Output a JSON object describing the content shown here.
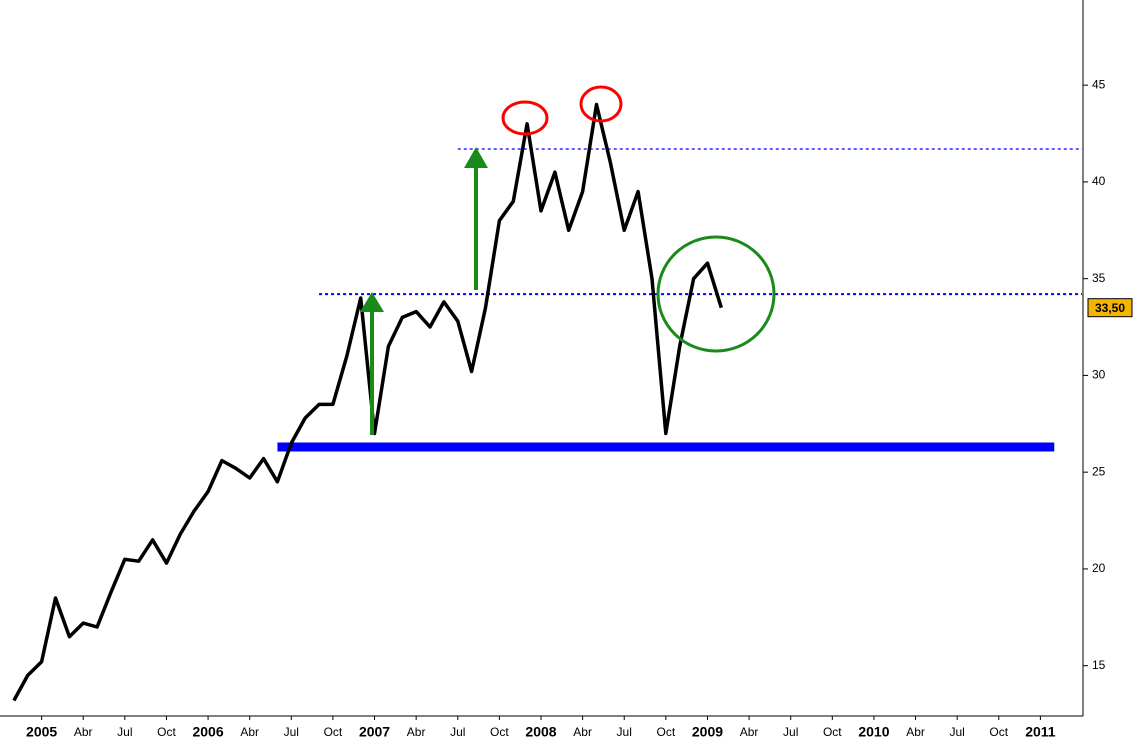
{
  "chart_data": {
    "type": "line",
    "x": [
      "2004-11",
      "2004-12",
      "2005-01",
      "2005-02",
      "2005-03",
      "2005-04",
      "2005-05",
      "2005-06",
      "2005-07",
      "2005-08",
      "2005-09",
      "2005-10",
      "2005-11",
      "2005-12",
      "2006-01",
      "2006-02",
      "2006-03",
      "2006-04",
      "2006-05",
      "2006-06",
      "2006-07",
      "2006-08",
      "2006-09",
      "2006-10",
      "2006-11",
      "2006-12",
      "2007-01",
      "2007-02",
      "2007-03",
      "2007-04",
      "2007-05",
      "2007-06",
      "2007-07",
      "2007-08",
      "2007-09",
      "2007-10",
      "2007-11",
      "2007-12",
      "2008-01",
      "2008-02",
      "2008-03",
      "2008-04",
      "2008-05",
      "2008-06",
      "2008-07",
      "2008-08",
      "2008-09",
      "2008-10",
      "2008-11",
      "2008-12",
      "2009-01",
      "2009-02"
    ],
    "values": [
      13.2,
      14.5,
      15.2,
      18.5,
      16.5,
      17.2,
      17.0,
      18.8,
      20.5,
      20.4,
      21.5,
      20.3,
      21.8,
      23.0,
      24.0,
      25.6,
      25.2,
      24.7,
      25.7,
      24.5,
      26.5,
      27.8,
      28.5,
      28.5,
      31.0,
      34.0,
      27.0,
      31.5,
      33.0,
      33.3,
      32.5,
      33.8,
      32.8,
      30.2,
      33.5,
      38.0,
      39.0,
      43.0,
      38.5,
      40.5,
      37.5,
      39.5,
      44.0,
      41.0,
      37.5,
      39.5,
      35.0,
      27.0,
      31.5,
      35.0,
      35.8,
      33.5
    ],
    "color": "#000000",
    "xlim": [
      "2004-10",
      "2011-04"
    ],
    "xticks": [
      {
        "value": "2005-01",
        "label": "2005"
      },
      {
        "value": "2005-04",
        "label": "Abr"
      },
      {
        "value": "2005-07",
        "label": "Jul"
      },
      {
        "value": "2005-10",
        "label": "Oct"
      },
      {
        "value": "2006-01",
        "label": "2006"
      },
      {
        "value": "2006-04",
        "label": "Abr"
      },
      {
        "value": "2006-07",
        "label": "Jul"
      },
      {
        "value": "2006-10",
        "label": "Oct"
      },
      {
        "value": "2007-01",
        "label": "2007"
      },
      {
        "value": "2007-04",
        "label": "Abr"
      },
      {
        "value": "2007-07",
        "label": "Jul"
      },
      {
        "value": "2007-10",
        "label": "Oct"
      },
      {
        "value": "2008-01",
        "label": "2008"
      },
      {
        "value": "2008-04",
        "label": "Abr"
      },
      {
        "value": "2008-07",
        "label": "Jul"
      },
      {
        "value": "2008-10",
        "label": "Oct"
      },
      {
        "value": "2009-01",
        "label": "2009"
      },
      {
        "value": "2009-04",
        "label": "Abr"
      },
      {
        "value": "2009-07",
        "label": "Jul"
      },
      {
        "value": "2009-10",
        "label": "Oct"
      },
      {
        "value": "2010-01",
        "label": "2010"
      },
      {
        "value": "2010-04",
        "label": "Abr"
      },
      {
        "value": "2010-07",
        "label": "Jul"
      },
      {
        "value": "2010-10",
        "label": "Oct"
      },
      {
        "value": "2011-01",
        "label": "2011"
      }
    ],
    "ylim": [
      12.4,
      49.4
    ],
    "yticks": [
      15,
      20,
      25,
      30,
      35,
      40,
      45
    ],
    "price_label": {
      "value": 33.5,
      "label": "33,50"
    },
    "reference_lines": [
      {
        "value": 41.7,
        "from": "2007-07",
        "to": "2011-04",
        "dashed": true,
        "color": "#0000ff"
      },
      {
        "value": 34.2,
        "from": "2006-09",
        "to": "2011-04",
        "dashed": true,
        "color": "#0000ff"
      },
      {
        "value": 26.3,
        "from": "2006-06",
        "to": "2011-02",
        "dashed": false,
        "color": "#0000ff"
      }
    ]
  }
}
